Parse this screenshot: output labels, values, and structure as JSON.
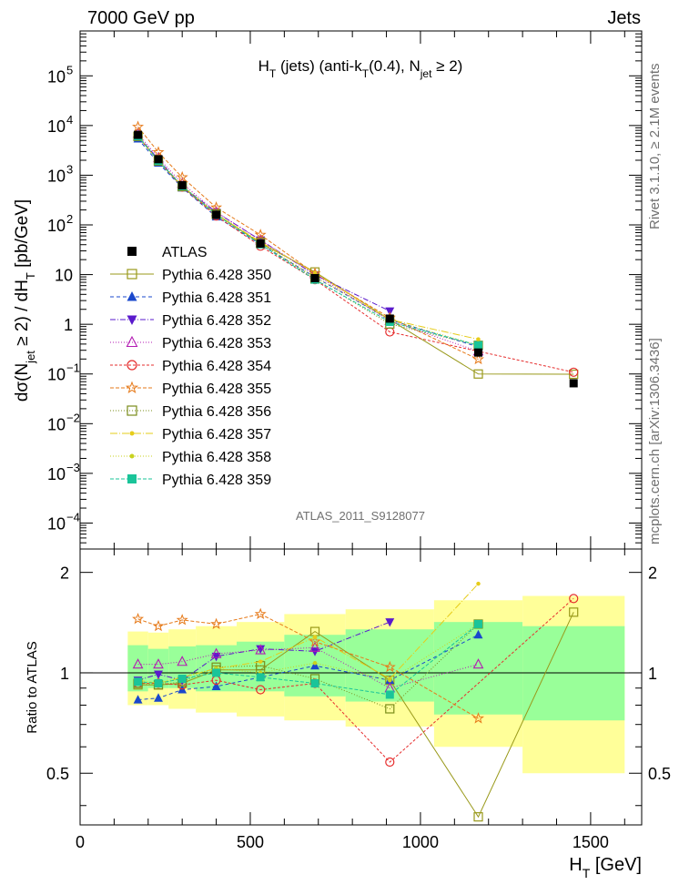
{
  "header": {
    "energy_label": "7000 GeV pp",
    "category_label": "Jets",
    "side_rivet": "Rivet 3.1.10, ≥ 2.1M events",
    "side_source": "mcplots.cern.ch [arXiv:1306.3436]",
    "analysis_id": "ATLAS_2011_S9128077"
  },
  "chart_data": {
    "type": "scatter",
    "title": "H_T (jets) (anti-k_T(0.4), N_jet ≥ 2)",
    "xlabel": "H_T [GeV]",
    "ylabel": "dσ(N_jet ≥ 2) / dH_T [pb/GeV]",
    "ratio_ylabel": "Ratio to ATLAS",
    "xlim": [
      0,
      1650
    ],
    "ylim": [
      3e-05,
      800000
    ],
    "yscale": "log",
    "ratio_ylim": [
      0.35,
      2.35
    ],
    "ratio_yscale": "log",
    "x_ticks": [
      0,
      500,
      1000,
      1500
    ],
    "x_tick_labels": [
      "0",
      "500",
      "1000",
      "1500"
    ],
    "y_ticks": [
      0.0001,
      0.001,
      0.01,
      0.1,
      1,
      10,
      100,
      1000,
      10000,
      100000
    ],
    "y_tick_labels": [
      {
        "base": "10",
        "exp": "−4"
      },
      {
        "base": "10",
        "exp": "−3"
      },
      {
        "base": "10",
        "exp": "−2"
      },
      {
        "base": "10",
        "exp": "−1"
      },
      {
        "base": "1",
        "exp": ""
      },
      {
        "base": "10",
        "exp": ""
      },
      {
        "base": "10",
        "exp": "2"
      },
      {
        "base": "10",
        "exp": "3"
      },
      {
        "base": "10",
        "exp": "4"
      },
      {
        "base": "10",
        "exp": "5"
      }
    ],
    "ratio_ticks": [
      0.5,
      1,
      2
    ],
    "ratio_tick_labels": [
      "0.5",
      "1",
      "2"
    ],
    "legend_position": "middle-left",
    "bins": [
      [
        140,
        200
      ],
      [
        200,
        260
      ],
      [
        260,
        340
      ],
      [
        340,
        460
      ],
      [
        460,
        600
      ],
      [
        600,
        780
      ],
      [
        780,
        1040
      ],
      [
        1040,
        1300
      ],
      [
        1300,
        1600
      ]
    ],
    "x": [
      170,
      230,
      300,
      400,
      530,
      690,
      910,
      1170,
      1450
    ],
    "atlas": {
      "name": "ATLAS",
      "values": [
        6500,
        2100,
        630,
        160,
        42,
        8.5,
        1.3,
        0.27,
        0.065
      ],
      "band_inner": [
        [
          0.88,
          1.21
        ],
        [
          0.9,
          1.18
        ],
        [
          0.9,
          1.2
        ],
        [
          0.88,
          1.21
        ],
        [
          0.88,
          1.24
        ],
        [
          0.85,
          1.3
        ],
        [
          0.82,
          1.35
        ],
        [
          0.75,
          1.42
        ],
        [
          0.72,
          1.38
        ]
      ],
      "band_outer": [
        [
          0.8,
          1.33
        ],
        [
          0.8,
          1.32
        ],
        [
          0.78,
          1.35
        ],
        [
          0.76,
          1.38
        ],
        [
          0.74,
          1.42
        ],
        [
          0.72,
          1.5
        ],
        [
          0.69,
          1.55
        ],
        [
          0.6,
          1.65
        ],
        [
          0.5,
          1.7
        ]
      ]
    },
    "series": [
      {
        "name": "Pythia 6.428 350",
        "color": "#99991a",
        "marker": "square-open",
        "dash": "",
        "ratio": [
          0.92,
          0.92,
          0.93,
          1.02,
          1.02,
          1.33,
          0.95,
          0.37,
          1.52
        ]
      },
      {
        "name": "Pythia 6.428 351",
        "color": "#1a48cc",
        "marker": "triangle-up",
        "dash": "4,3",
        "ratio": [
          0.83,
          0.84,
          0.89,
          0.91,
          0.97,
          1.05,
          0.95,
          1.3,
          null
        ]
      },
      {
        "name": "Pythia 6.428 352",
        "color": "#5a1acc",
        "marker": "triangle-down",
        "dash": "6,2,1,2",
        "ratio": [
          0.95,
          0.99,
          0.95,
          1.12,
          1.18,
          1.16,
          1.42,
          null,
          null
        ]
      },
      {
        "name": "Pythia 6.428 353",
        "color": "#b31ab3",
        "marker": "triangle-open",
        "dash": "1,2",
        "ratio": [
          1.06,
          1.06,
          1.08,
          1.14,
          1.17,
          1.19,
          0.9,
          1.06,
          null
        ]
      },
      {
        "name": "Pythia 6.428 354",
        "color": "#e62e2e",
        "marker": "circle-open",
        "dash": "3,2",
        "ratio": [
          0.93,
          0.93,
          0.92,
          0.95,
          0.89,
          0.93,
          0.54,
          null,
          1.67
        ]
      },
      {
        "name": "Pythia 6.428 355",
        "color": "#e67a1a",
        "marker": "star",
        "dash": "4,2",
        "ratio": [
          1.45,
          1.38,
          1.44,
          1.4,
          1.5,
          1.24,
          1.04,
          0.73,
          null
        ]
      },
      {
        "name": "Pythia 6.428 356",
        "color": "#7a8c1a",
        "marker": "square-open",
        "dash": "1,2",
        "ratio": [
          0.93,
          0.92,
          0.94,
          1.04,
          1.05,
          0.96,
          0.78,
          1.4,
          null
        ]
      },
      {
        "name": "Pythia 6.428 357",
        "color": "#e6cc1a",
        "marker": "dot",
        "dash": "8,2,1,2",
        "ratio": [
          0.95,
          0.93,
          0.97,
          1.03,
          1.08,
          1.28,
          0.96,
          1.85,
          null
        ]
      },
      {
        "name": "Pythia 6.428 358",
        "color": "#c8d21e",
        "marker": "dot",
        "dash": "1,2",
        "ratio": [
          0.94,
          0.92,
          0.97,
          1.03,
          1.0,
          1.07,
          0.95,
          1.4,
          null
        ]
      },
      {
        "name": "Pythia 6.428 359",
        "color": "#1ac499",
        "marker": "square",
        "dash": "4,2",
        "ratio": [
          0.94,
          0.93,
          0.96,
          1.0,
          0.97,
          0.93,
          0.86,
          1.4,
          null
        ]
      }
    ]
  }
}
